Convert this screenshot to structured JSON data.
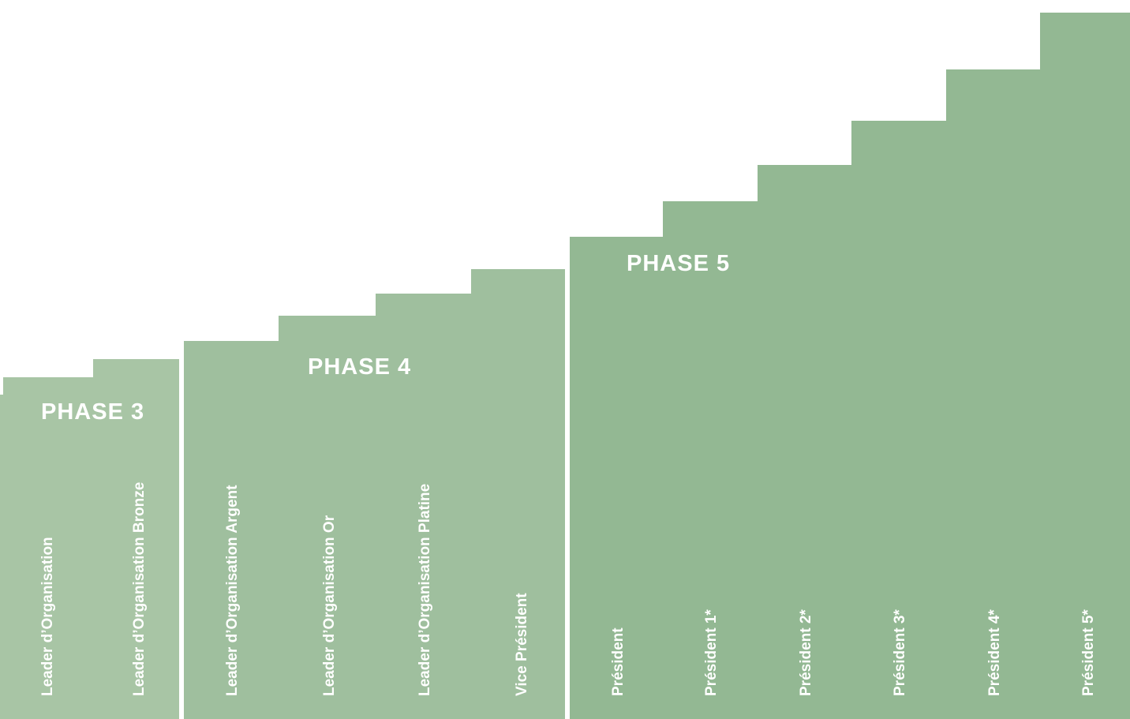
{
  "phases": [
    {
      "title": "PHASE 3",
      "ranks": [
        "Leader d’Organisation",
        "Leader d’Organisation Bronze"
      ]
    },
    {
      "title": "PHASE 4",
      "ranks": [
        "Leader d’Organisation Argent",
        "Leader d’Organisation Or",
        "Leader d’Organisation Platine",
        "Vice Président"
      ]
    },
    {
      "title": "PHASE 5",
      "ranks": [
        "Président",
        "Président 1*",
        "Président 2*",
        "Président 3*",
        "Président 4*",
        "Président 5*"
      ]
    }
  ],
  "colors": {
    "phase3": "#a8c5a5",
    "phase4": "#9fbf9e",
    "phase5": "#93b893",
    "text": "#ffffff",
    "background": "#ffffff"
  }
}
